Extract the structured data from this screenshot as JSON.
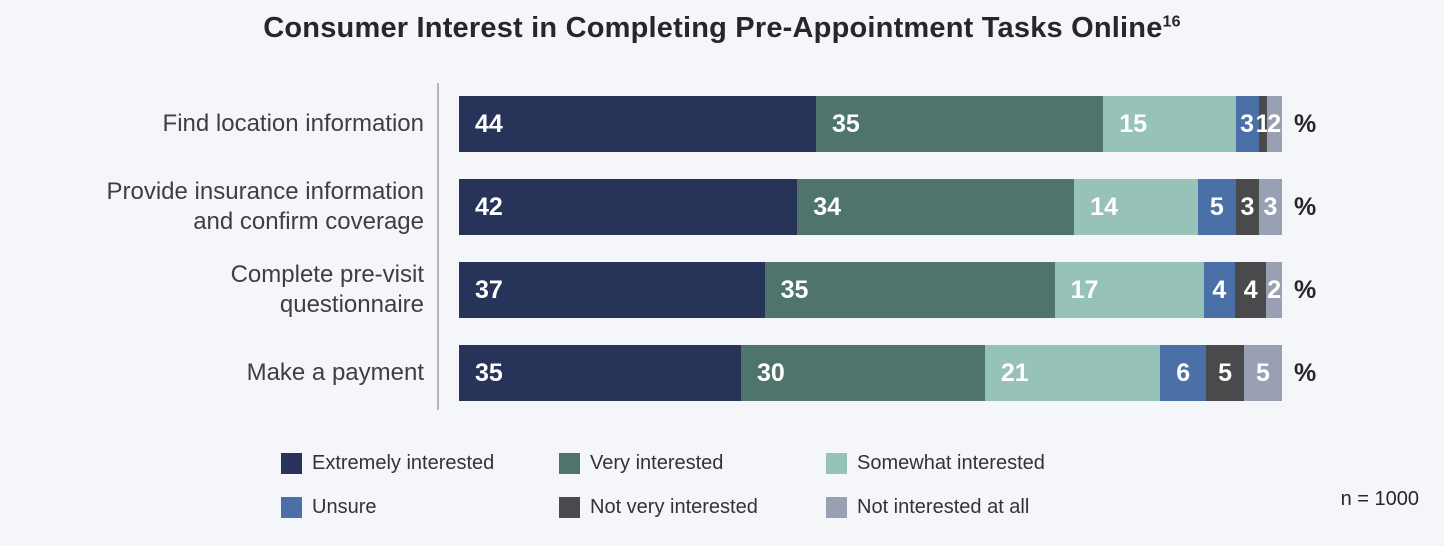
{
  "title": {
    "text": "Consumer Interest in Completing Pre-Appointment Tasks Online",
    "superscript": "16"
  },
  "chart_data": {
    "type": "bar",
    "orientation": "horizontal",
    "stacked": true,
    "unit": "%",
    "categories": [
      "Find location information",
      "Provide insurance information\nand confirm coverage",
      "Complete pre-visit\nquestionnaire",
      "Make a payment"
    ],
    "series": [
      {
        "name": "Extremely interested",
        "color": "#273359",
        "values": [
          44,
          42,
          37,
          35
        ]
      },
      {
        "name": "Very interested",
        "color": "#4e746c",
        "values": [
          35,
          34,
          35,
          30
        ]
      },
      {
        "name": "Somewhat interested",
        "color": "#96c2b7",
        "values": [
          15,
          14,
          17,
          21
        ]
      },
      {
        "name": "Unsure",
        "color": "#4b70a8",
        "values": [
          3,
          5,
          4,
          6
        ]
      },
      {
        "name": "Not very interested",
        "color": "#4a4a4c",
        "values": [
          1,
          3,
          4,
          5
        ]
      },
      {
        "name": "Not interested at all",
        "color": "#99a0b4",
        "values": [
          2,
          3,
          2,
          5
        ]
      }
    ],
    "value_suffix_label": "%",
    "legend_position": "bottom",
    "axis_line": true,
    "background": "#f4f6f9"
  },
  "footer": {
    "sample_size": "n = 1000"
  }
}
